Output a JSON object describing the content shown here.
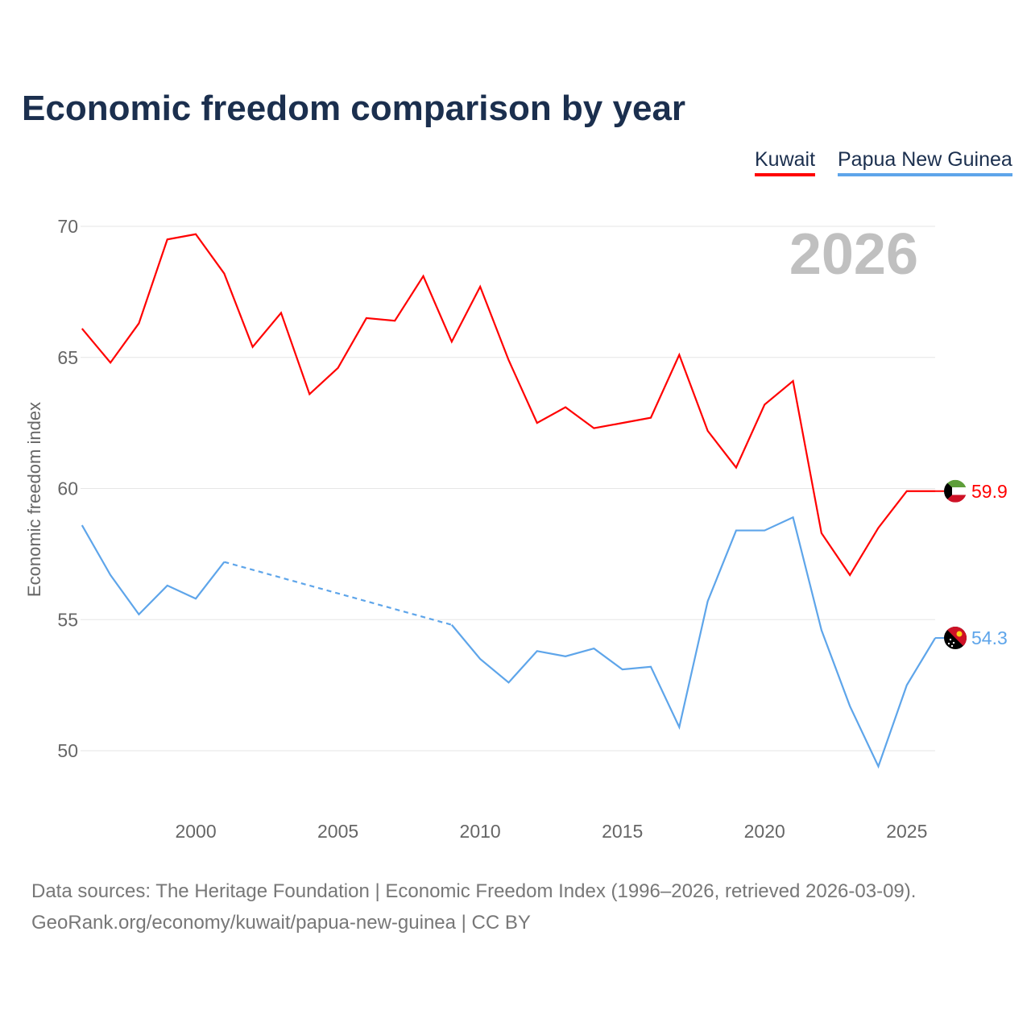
{
  "title": "Economic freedom comparison by year",
  "footer": {
    "line1": "Data sources: The Heritage Foundation | Economic Freedom Index (1996–2026, retrieved 2026-03-09).",
    "line2": "GeoRank.org/economy/kuwait/papua-new-guinea | CC BY"
  },
  "chart_data": {
    "type": "line",
    "title": "Economic freedom comparison by year",
    "xlabel": "",
    "ylabel": "Economic freedom index",
    "year_label": "2026",
    "xlim": [
      1996,
      2026
    ],
    "ylim": [
      47.5,
      71.5
    ],
    "yticks": [
      50,
      55,
      60,
      65,
      70
    ],
    "xticks": [
      2000,
      2005,
      2010,
      2015,
      2020,
      2025
    ],
    "grid": true,
    "legend_position": "top-right",
    "x": [
      1996,
      1997,
      1998,
      1999,
      2000,
      2001,
      2002,
      2003,
      2004,
      2005,
      2006,
      2007,
      2008,
      2009,
      2010,
      2011,
      2012,
      2013,
      2014,
      2015,
      2016,
      2017,
      2018,
      2019,
      2020,
      2021,
      2022,
      2023,
      2024,
      2025,
      2026
    ],
    "series": [
      {
        "name": "Kuwait",
        "color": "#ff0000",
        "end_label": "59.9",
        "values": [
          66.1,
          64.8,
          66.3,
          69.5,
          69.7,
          68.2,
          65.4,
          66.7,
          63.6,
          64.6,
          66.5,
          66.4,
          68.1,
          65.6,
          67.7,
          64.9,
          62.5,
          63.1,
          62.3,
          62.5,
          62.7,
          65.1,
          62.2,
          60.8,
          63.2,
          64.1,
          58.3,
          56.7,
          58.5,
          59.9,
          59.9
        ]
      },
      {
        "name": "Papua New Guinea",
        "color": "#5ea5ea",
        "end_label": "54.3",
        "values": [
          58.6,
          56.7,
          55.2,
          56.3,
          55.8,
          57.2,
          null,
          null,
          null,
          null,
          null,
          null,
          null,
          54.8,
          53.5,
          52.6,
          53.8,
          53.6,
          53.9,
          53.1,
          53.2,
          50.9,
          55.7,
          58.4,
          58.4,
          58.9,
          54.6,
          51.7,
          49.4,
          52.5,
          54.3
        ]
      }
    ]
  }
}
